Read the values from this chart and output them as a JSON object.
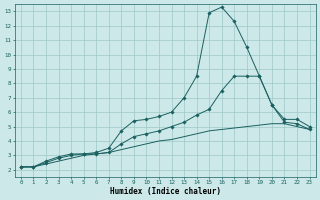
{
  "title": "",
  "xlabel": "Humidex (Indice chaleur)",
  "ylabel": "",
  "background_color": "#cde8e8",
  "grid_color": "#9dc8c8",
  "line_color": "#1a6060",
  "x_ticks": [
    0,
    1,
    2,
    3,
    4,
    5,
    6,
    7,
    8,
    9,
    10,
    11,
    12,
    13,
    14,
    15,
    16,
    17,
    18,
    19,
    20,
    21,
    22,
    23
  ],
  "y_ticks": [
    2,
    3,
    4,
    5,
    6,
    7,
    8,
    9,
    10,
    11,
    12,
    13
  ],
  "xlim": [
    -0.5,
    23.5
  ],
  "ylim": [
    1.5,
    13.5
  ],
  "series": [
    {
      "x": [
        0,
        1,
        2,
        3,
        4,
        5,
        6,
        7,
        8,
        9,
        10,
        11,
        12,
        13,
        14,
        15,
        16,
        17,
        18,
        19,
        20,
        21,
        22,
        23
      ],
      "y": [
        2.2,
        2.2,
        2.6,
        2.9,
        3.1,
        3.1,
        3.2,
        3.5,
        4.7,
        5.4,
        5.5,
        5.7,
        6.0,
        7.0,
        8.5,
        12.9,
        13.3,
        12.3,
        10.5,
        8.5,
        6.5,
        5.3,
        5.2,
        4.8
      ],
      "marker": "D",
      "markersize": 1.8
    },
    {
      "x": [
        0,
        1,
        2,
        3,
        4,
        5,
        6,
        7,
        8,
        9,
        10,
        11,
        12,
        13,
        14,
        15,
        16,
        17,
        18,
        19,
        20,
        21,
        22,
        23
      ],
      "y": [
        2.2,
        2.2,
        2.5,
        2.8,
        3.0,
        3.1,
        3.1,
        3.2,
        3.8,
        4.3,
        4.5,
        4.7,
        5.0,
        5.3,
        5.8,
        6.2,
        7.5,
        8.5,
        8.5,
        8.5,
        6.5,
        5.5,
        5.5,
        5.0
      ],
      "marker": "D",
      "markersize": 1.8
    },
    {
      "x": [
        0,
        1,
        2,
        3,
        4,
        5,
        6,
        7,
        8,
        9,
        10,
        11,
        12,
        13,
        14,
        15,
        16,
        17,
        18,
        19,
        20,
        21,
        22,
        23
      ],
      "y": [
        2.2,
        2.2,
        2.4,
        2.6,
        2.8,
        3.0,
        3.1,
        3.2,
        3.4,
        3.6,
        3.8,
        4.0,
        4.1,
        4.3,
        4.5,
        4.7,
        4.8,
        4.9,
        5.0,
        5.1,
        5.2,
        5.2,
        5.0,
        4.8
      ],
      "marker": null,
      "markersize": 0
    }
  ]
}
